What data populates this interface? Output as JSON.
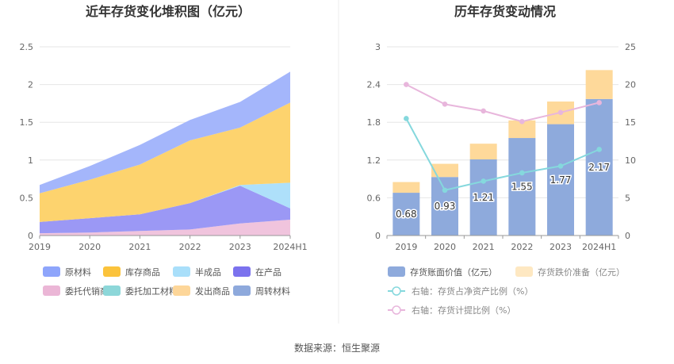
{
  "source_label": "数据来源：恒生聚源",
  "chart_data": [
    {
      "type": "area",
      "stacked": true,
      "title": "近年存货变化堆积图（亿元）",
      "categories": [
        "2019",
        "2020",
        "2021",
        "2022",
        "2023",
        "2024H1"
      ],
      "ylim": [
        0,
        2.5
      ],
      "yticks": [
        "0",
        "0.5",
        "1",
        "1.5",
        "2",
        "2.5"
      ],
      "grid": true,
      "legend_position": "bottom",
      "series": [
        {
          "name": "委托代销商品",
          "color": "#f0c4dd",
          "values": [
            0.03,
            0.04,
            0.06,
            0.08,
            0.16,
            0.21
          ]
        },
        {
          "name": "在产品",
          "color": "#9b98f5",
          "values": [
            0.15,
            0.19,
            0.22,
            0.35,
            0.5,
            0.15
          ]
        },
        {
          "name": "半成品",
          "color": "#aee0fa",
          "values": [
            0.0,
            0.0,
            0.0,
            0.0,
            0.01,
            0.34
          ]
        },
        {
          "name": "库存商品",
          "color": "#fdd36e",
          "values": [
            0.38,
            0.51,
            0.66,
            0.83,
            0.76,
            1.06
          ]
        },
        {
          "name": "原材料",
          "color": "#a4b6fb",
          "values": [
            0.11,
            0.18,
            0.26,
            0.27,
            0.34,
            0.41
          ]
        }
      ],
      "legend": [
        {
          "name": "原材料",
          "color": "#8ea5fb"
        },
        {
          "name": "库存商品",
          "color": "#fbc33c"
        },
        {
          "name": "半成品",
          "color": "#a9dffa"
        },
        {
          "name": "在产品",
          "color": "#7b72ee"
        },
        {
          "name": "委托代销商品",
          "color": "#ebb6d6"
        },
        {
          "name": "委托加工材料",
          "color": "#8dd7d9"
        },
        {
          "name": "发出商品",
          "color": "#fdd699"
        },
        {
          "name": "周转材料",
          "color": "#8ea9dc"
        }
      ]
    },
    {
      "type": "bar",
      "stacked": true,
      "title": "历年存货变动情况",
      "categories": [
        "2019",
        "2020",
        "2021",
        "2022",
        "2023",
        "2024H1"
      ],
      "ylim": [
        0,
        3
      ],
      "yticks": [
        "0",
        "0.6",
        "1.2",
        "1.8",
        "2.4",
        "3"
      ],
      "y2lim": [
        0,
        25
      ],
      "y2ticks": [
        "0",
        "5",
        "10",
        "15",
        "20",
        "25"
      ],
      "grid": true,
      "legend_position": "bottom",
      "series": [
        {
          "name": "存货账面价值（亿元）",
          "color": "#8eaadc",
          "values": [
            0.68,
            0.93,
            1.21,
            1.55,
            1.77,
            2.17
          ],
          "labels": [
            "0.68",
            "0.93",
            "1.21",
            "1.55",
            "1.77",
            "2.17"
          ]
        },
        {
          "name": "存货跌价准备（亿元）",
          "color": "#fed99a",
          "values": [
            0.17,
            0.21,
            0.25,
            0.28,
            0.36,
            0.46
          ]
        }
      ],
      "lines": [
        {
          "name": "右轴：存货占净资产比例（%）",
          "color": "#85d8dd",
          "values": [
            15.5,
            6.0,
            7.2,
            8.3,
            9.2,
            11.4
          ]
        },
        {
          "name": "右轴：存货计提比例（%）",
          "color": "#e8b6dc",
          "values": [
            20.0,
            17.4,
            16.5,
            15.1,
            16.3,
            17.6
          ]
        }
      ]
    }
  ]
}
